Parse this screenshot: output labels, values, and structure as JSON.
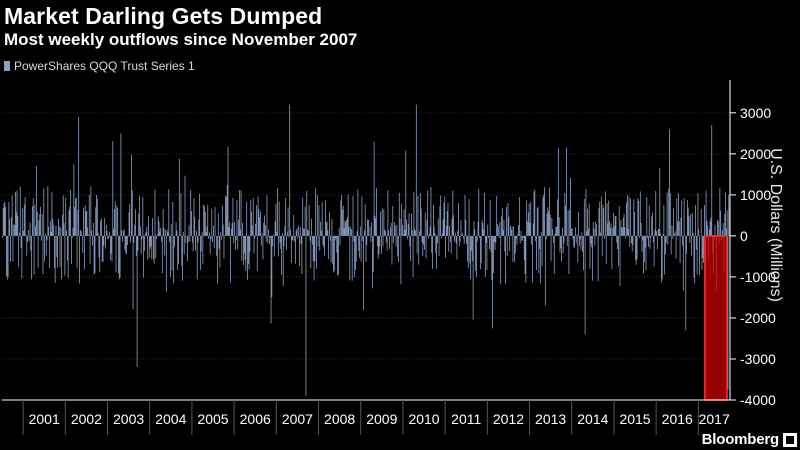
{
  "title": "Market Darling Gets Dumped",
  "subtitle": "Most weekly outflows since November 2007",
  "branding": "Bloomberg",
  "colors": {
    "series": "#8aa0c4",
    "highlight": "#cc0000",
    "background": "#000000",
    "axis": "#ffffff",
    "grid": "#2e2e2e"
  },
  "chart_data": {
    "type": "bar",
    "ylabel": "U.S. Dollars (Millions)",
    "ylim": [
      -4000,
      3800
    ],
    "yticks": [
      3000,
      2000,
      1000,
      0,
      -1000,
      -2000,
      -3000,
      -4000
    ],
    "ytick_labels": [
      "3000",
      "2000",
      "1000",
      "0",
      "-1000",
      "-2000",
      "-3000",
      "-4000"
    ],
    "grid": "horizontal dotted",
    "legend_position": "top-left",
    "x_categories": [
      "2001",
      "2002",
      "2003",
      "2004",
      "2005",
      "2006",
      "2007",
      "2008",
      "2009",
      "2010",
      "2011",
      "2012",
      "2013",
      "2014",
      "2015",
      "2016",
      "2017"
    ],
    "series": [
      {
        "name": "PowerShares QQQ Trust Series 1",
        "frequency": "weekly",
        "notable_points": [
          {
            "period": "2001",
            "value": 1700
          },
          {
            "period": "2002",
            "value": 2900
          },
          {
            "period": "2003",
            "value": 2500
          },
          {
            "period": "2003",
            "value": -3200
          },
          {
            "period": "2007",
            "value": 3200
          },
          {
            "period": "2007",
            "value": -3900
          },
          {
            "period": "2009",
            "value": 2300
          },
          {
            "period": "2010",
            "value": 3200
          },
          {
            "period": "2014",
            "value": -2400
          },
          {
            "period": "2016",
            "value": 2600
          },
          {
            "period": "2016",
            "value": -2300
          },
          {
            "period": "2017",
            "value": 2700
          },
          {
            "period": "2017",
            "value": -3750
          }
        ]
      }
    ],
    "highlight": {
      "period": "2017",
      "ymin": -4000,
      "ymax": 0
    }
  }
}
